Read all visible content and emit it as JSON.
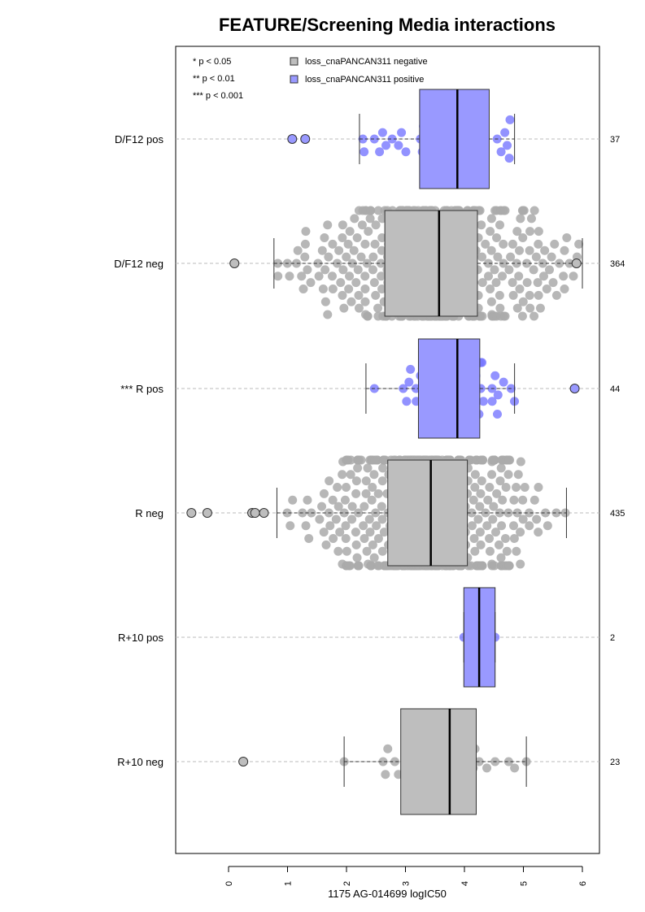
{
  "chart_data": {
    "type": "boxplot",
    "title": "FEATURE/Screening Media interactions",
    "xlabel": "1175 AG-014699 logIC50",
    "xlim": [
      -0.9,
      6.3
    ],
    "xticks": [
      "0",
      "1",
      "2",
      "3",
      "4",
      "5",
      "6"
    ],
    "significance_legend": [
      "* p < 0.05",
      "** p < 0.01",
      "*** p < 0.001"
    ],
    "legend": [
      {
        "name": "loss_cnaPANCAN311 negative",
        "color": "#bebebe"
      },
      {
        "name": "loss_cnaPANCAN311 positive",
        "color": "#9999ff"
      }
    ],
    "groups": [
      {
        "label": "D/F12 pos",
        "count": "37",
        "type": "positive",
        "whisker_low": 2.22,
        "q1": 3.24,
        "median": 3.88,
        "q3": 4.42,
        "whisker_high": 4.85,
        "outliers": [
          1.08,
          1.3
        ],
        "points_n": 37,
        "halfwidth": 32
      },
      {
        "label": "D/F12 neg",
        "count": "364",
        "type": "negative",
        "whisker_low": 0.77,
        "q1": 2.65,
        "median": 3.57,
        "q3": 4.22,
        "whisker_high": 6.0,
        "outliers": [
          0.1,
          5.9
        ],
        "points_n": 364,
        "halfwidth": 65
      },
      {
        "label": "*** R pos",
        "count": "44",
        "type": "positive",
        "whisker_low": 2.33,
        "q1": 3.22,
        "median": 3.88,
        "q3": 4.26,
        "whisker_high": 4.85,
        "outliers": [
          5.87
        ],
        "points_n": 44,
        "halfwidth": 32
      },
      {
        "label": "R neg",
        "count": "435",
        "type": "negative",
        "whisker_low": 0.82,
        "q1": 2.7,
        "median": 3.43,
        "q3": 4.05,
        "whisker_high": 5.73,
        "outliers": [
          -0.63,
          -0.36,
          0.4,
          0.45,
          0.6
        ],
        "points_n": 435,
        "halfwidth": 65
      },
      {
        "label": "R+10 pos",
        "count": "2",
        "type": "positive",
        "whisker_low": 3.99,
        "q1": 3.99,
        "median": 4.25,
        "q3": 4.52,
        "whisker_high": 4.52,
        "outliers": [],
        "points": [
          3.99,
          4.52
        ],
        "halfwidth": 32
      },
      {
        "label": "R+10 neg",
        "count": "23",
        "type": "negative",
        "whisker_low": 1.96,
        "q1": 2.92,
        "median": 3.75,
        "q3": 4.2,
        "whisker_high": 5.05,
        "outliers": [
          0.25
        ],
        "points": [
          1.96,
          2.62,
          2.66,
          2.82,
          2.88,
          3.3,
          3.58,
          3.7,
          3.75,
          3.8,
          3.98,
          4.08,
          4.15,
          4.18,
          4.38,
          4.52,
          4.75,
          4.85,
          5.05,
          3.62,
          4.02,
          2.7,
          4.25
        ],
        "halfwidth": 65
      }
    ]
  }
}
